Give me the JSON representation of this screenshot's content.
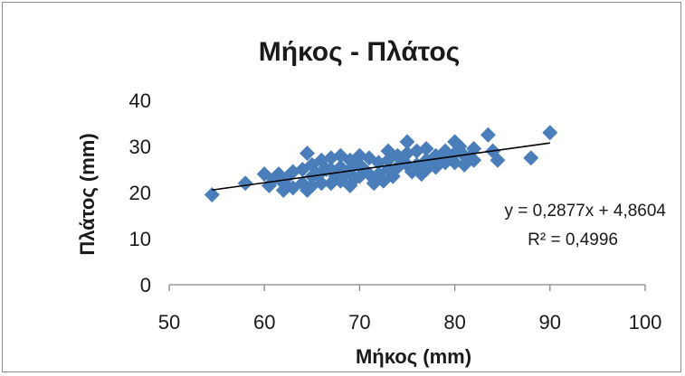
{
  "chart_data": {
    "type": "scatter",
    "title": "Μήκος - Πλάτος",
    "xlabel": "Μήκος (mm)",
    "ylabel": "Πλάτος (mm)",
    "xlim": [
      50,
      100
    ],
    "ylim": [
      0,
      40
    ],
    "x_ticks": [
      "50",
      "60",
      "70",
      "80",
      "90",
      "100"
    ],
    "y_ticks": [
      "0",
      "10",
      "20",
      "30",
      "40"
    ],
    "grid": false,
    "legend": "none",
    "marker_color": "#4a7ebb",
    "trendline": {
      "slope": 0.2877,
      "intercept": 4.8604,
      "x_range": [
        54.5,
        90
      ]
    },
    "equation_label": "y = 0,2877x + 4,8604",
    "r2_label": "R² = 0,4996",
    "series": [
      {
        "x": [
          54.5,
          58,
          60,
          60.5,
          61,
          61.5,
          62,
          62,
          62.5,
          63,
          63,
          64,
          64,
          64.5,
          64.5,
          65,
          65,
          65,
          65.5,
          66,
          66,
          66,
          66.5,
          67,
          67,
          67,
          67.5,
          68,
          68,
          68,
          68.5,
          69,
          69,
          69,
          69.5,
          70,
          70,
          70,
          70.5,
          71,
          71,
          71.5,
          72,
          72,
          72.5,
          73,
          73,
          73,
          73.5,
          74,
          74,
          74.5,
          75,
          75,
          75,
          75.5,
          76,
          76,
          76.5,
          77,
          77,
          77,
          77.5,
          78,
          78,
          78.5,
          79,
          79,
          79.5,
          80,
          80,
          80,
          80.5,
          81,
          81,
          81.5,
          82,
          82,
          83.5,
          84,
          84.5,
          88,
          90
        ],
        "y": [
          19.5,
          22,
          24,
          21.5,
          23,
          24,
          22,
          20.5,
          23.5,
          24.5,
          21,
          25,
          22,
          28.5,
          20.5,
          26,
          23.5,
          21.5,
          24,
          27,
          24.5,
          22,
          25,
          27.5,
          25,
          22,
          23.5,
          28,
          25.5,
          22.5,
          24,
          27,
          25,
          21.5,
          23,
          28,
          26,
          23.5,
          25,
          27.5,
          24,
          22,
          26.5,
          24,
          22.5,
          29,
          27,
          25,
          23.5,
          28,
          25.5,
          27,
          31,
          28.5,
          26,
          24.5,
          29,
          26,
          24,
          29.5,
          27,
          25,
          26.5,
          28,
          25.5,
          27,
          29,
          26.5,
          27.5,
          31,
          28.5,
          26.5,
          30,
          28,
          26,
          27.5,
          29.5,
          27,
          32.5,
          29,
          27,
          27.5,
          33
        ]
      }
    ]
  }
}
